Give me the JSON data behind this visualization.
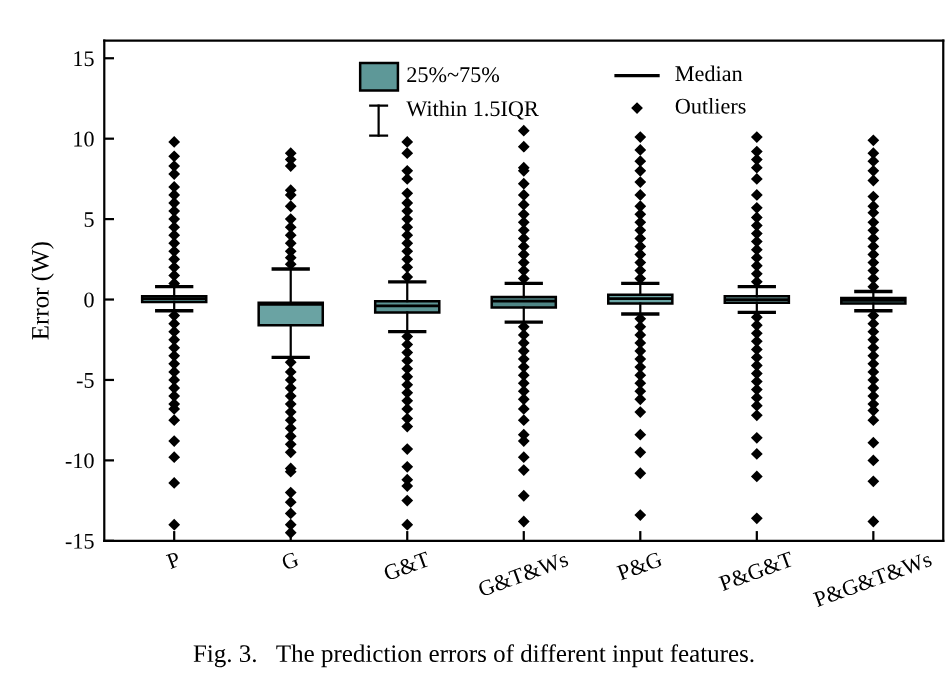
{
  "chart_data": {
    "type": "box",
    "ylabel": "Error (W)",
    "categories": [
      "P",
      "G",
      "G&T",
      "G&T&Ws",
      "P&G",
      "P&G&T",
      "P&G&T&Ws"
    ],
    "colors": [
      "#5e9898",
      "#6aa3a3",
      "#5c9595",
      "#4f8585",
      "#6aa5a5",
      "#7ab3b3",
      "#5f9999"
    ],
    "boxes": [
      {
        "low": -0.7,
        "q1": -0.15,
        "median": 0.05,
        "q3": 0.2,
        "high": 0.8,
        "outliers": [
          1.0,
          1.5,
          2.0,
          2.5,
          3.0,
          3.5,
          4.0,
          4.5,
          5.0,
          5.5,
          6.0,
          6.5,
          7.0,
          7.8,
          8.3,
          8.9,
          9.8,
          -1.0,
          -1.5,
          -2.0,
          -2.5,
          -3.0,
          -3.5,
          -4.0,
          -4.5,
          -5.0,
          -5.5,
          -6.0,
          -6.5,
          -6.8,
          -7.5,
          -8.8,
          -9.8,
          -11.4,
          -14.0
        ]
      },
      {
        "low": -3.6,
        "q1": -1.6,
        "median": -0.3,
        "q3": -0.2,
        "high": 1.9,
        "outliers": [
          2.2,
          2.6,
          3.0,
          3.5,
          4.0,
          4.5,
          5.0,
          5.8,
          6.5,
          6.8,
          8.3,
          8.7,
          9.1,
          -3.9,
          -4.5,
          -5.0,
          -5.5,
          -6.0,
          -6.5,
          -7.0,
          -7.5,
          -8.0,
          -8.5,
          -9.0,
          -9.5,
          -10.5,
          -10.7,
          -12.0,
          -12.6,
          -13.3,
          -14.0,
          -14.5
        ]
      },
      {
        "low": -2.0,
        "q1": -0.8,
        "median": -0.4,
        "q3": -0.1,
        "high": 1.1,
        "outliers": [
          1.4,
          2.0,
          2.5,
          3.0,
          3.5,
          4.0,
          4.5,
          5.0,
          5.5,
          6.0,
          6.6,
          7.5,
          8.0,
          9.1,
          9.8,
          -2.3,
          -2.8,
          -3.3,
          -3.8,
          -4.3,
          -4.8,
          -5.3,
          -5.8,
          -6.3,
          -6.8,
          -7.4,
          -7.9,
          -9.3,
          -10.4,
          -11.2,
          -11.6,
          -12.5,
          -14.0
        ]
      },
      {
        "low": -1.4,
        "q1": -0.5,
        "median": -0.1,
        "q3": 0.15,
        "high": 1.0,
        "outliers": [
          1.3,
          1.8,
          2.3,
          2.8,
          3.3,
          3.8,
          4.3,
          4.8,
          5.3,
          5.9,
          6.5,
          7.2,
          8.0,
          8.2,
          9.5,
          10.5,
          -1.7,
          -2.2,
          -2.7,
          -3.2,
          -3.7,
          -4.2,
          -4.7,
          -5.2,
          -5.7,
          -6.2,
          -6.8,
          -7.5,
          -8.4,
          -8.8,
          -9.8,
          -10.6,
          -12.2,
          -13.8
        ]
      },
      {
        "low": -0.9,
        "q1": -0.25,
        "median": 0.05,
        "q3": 0.3,
        "high": 1.0,
        "outliers": [
          1.3,
          1.8,
          2.3,
          2.8,
          3.3,
          3.8,
          4.3,
          4.8,
          5.3,
          5.8,
          6.5,
          7.3,
          8.0,
          8.6,
          9.3,
          10.1,
          -1.2,
          -1.7,
          -2.2,
          -2.7,
          -3.2,
          -3.7,
          -4.2,
          -4.7,
          -5.2,
          -5.7,
          -6.2,
          -7.0,
          -8.4,
          -9.5,
          -10.8,
          -13.4
        ]
      },
      {
        "low": -0.8,
        "q1": -0.2,
        "median": 0.0,
        "q3": 0.2,
        "high": 0.8,
        "outliers": [
          1.1,
          1.6,
          2.1,
          2.6,
          3.1,
          3.6,
          4.1,
          4.6,
          5.1,
          5.7,
          6.5,
          7.5,
          8.2,
          8.7,
          9.2,
          10.1,
          -1.1,
          -1.6,
          -2.1,
          -2.6,
          -3.1,
          -3.6,
          -4.1,
          -4.6,
          -5.1,
          -5.6,
          -6.1,
          -6.6,
          -7.2,
          -8.6,
          -9.6,
          -11.0,
          -13.6
        ]
      },
      {
        "low": -0.7,
        "q1": -0.25,
        "median": -0.05,
        "q3": 0.1,
        "high": 0.5,
        "outliers": [
          0.8,
          1.3,
          1.8,
          2.3,
          2.8,
          3.3,
          3.8,
          4.3,
          4.8,
          5.4,
          5.8,
          6.4,
          7.4,
          8.0,
          8.6,
          9.1,
          9.9,
          -1.0,
          -1.5,
          -2.0,
          -2.5,
          -3.0,
          -3.5,
          -4.0,
          -4.5,
          -5.0,
          -5.5,
          -6.0,
          -6.5,
          -6.9,
          -7.5,
          -8.9,
          -10.0,
          -11.3,
          -13.8
        ]
      }
    ],
    "ylim": [
      -15,
      16.1
    ],
    "yticks": [
      -15,
      -10,
      -5,
      0,
      5,
      10,
      15
    ],
    "marker": "diamond",
    "grid": false,
    "annotations": [
      "25%~75%",
      "Within 1.5IQR",
      "Median",
      "Outliers",
      "Fig. 3.   The prediction errors of different input features."
    ]
  }
}
